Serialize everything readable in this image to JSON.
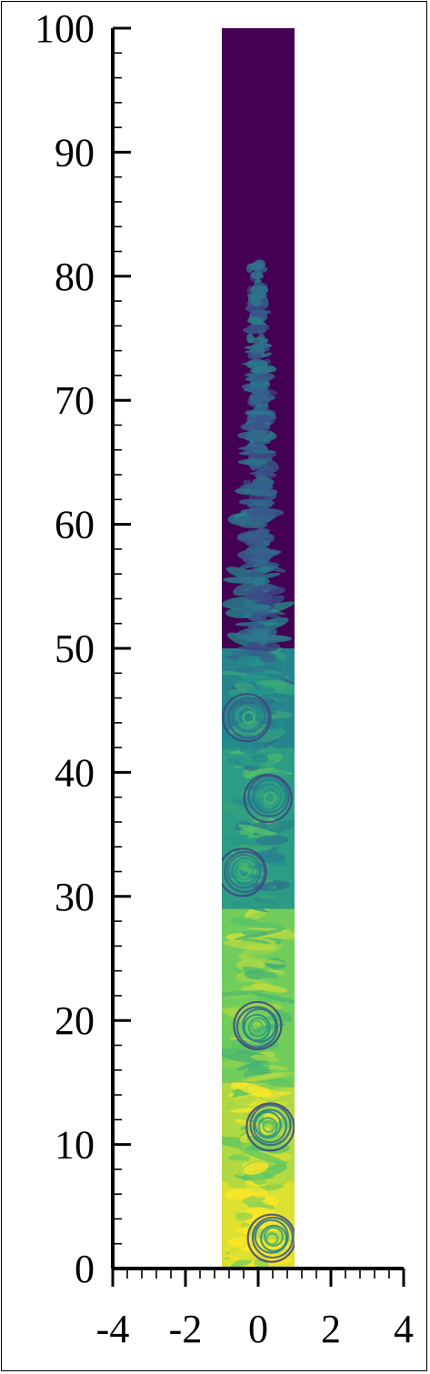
{
  "chart_data": {
    "type": "heatmap",
    "title": "",
    "xlabel": "",
    "ylabel": "",
    "xlim": [
      -4,
      4
    ],
    "ylim": [
      0,
      100
    ],
    "x_ticks": [
      -4,
      -2,
      0,
      2,
      4
    ],
    "x_tick_labels": [
      "-4",
      "-2",
      "0",
      "2",
      "4"
    ],
    "y_ticks": [
      0,
      10,
      20,
      30,
      40,
      50,
      60,
      70,
      80,
      90,
      100
    ],
    "y_tick_labels": [
      "0",
      "10",
      "20",
      "30",
      "40",
      "50",
      "60",
      "70",
      "80",
      "90",
      "100"
    ],
    "domain_x": [
      -1,
      1
    ],
    "domain_y": [
      0,
      100
    ],
    "colormap": [
      "#440154",
      "#3b528b",
      "#21918c",
      "#5ec962",
      "#fde725"
    ],
    "layers": [
      {
        "y_from": 0,
        "y_to": 7,
        "level": 0.95
      },
      {
        "y_from": 7,
        "y_to": 15,
        "level": 0.88
      },
      {
        "y_from": 15,
        "y_to": 29,
        "level": 0.78
      },
      {
        "y_from": 29,
        "y_to": 42,
        "level": 0.55
      },
      {
        "y_from": 42,
        "y_to": 50,
        "level": 0.45
      },
      {
        "y_from": 50,
        "y_to": 81,
        "level": 0.35
      },
      {
        "y_from": 81,
        "y_to": 100,
        "level": 0.0
      }
    ],
    "vortex_centers": [
      {
        "x": 0.4,
        "y": 2.5
      },
      {
        "x": 0.3,
        "y": 11.5
      },
      {
        "x": 0.0,
        "y": 19.5
      },
      {
        "x": -0.4,
        "y": 32
      },
      {
        "x": 0.3,
        "y": 38
      },
      {
        "x": -0.3,
        "y": 44.5
      }
    ]
  }
}
